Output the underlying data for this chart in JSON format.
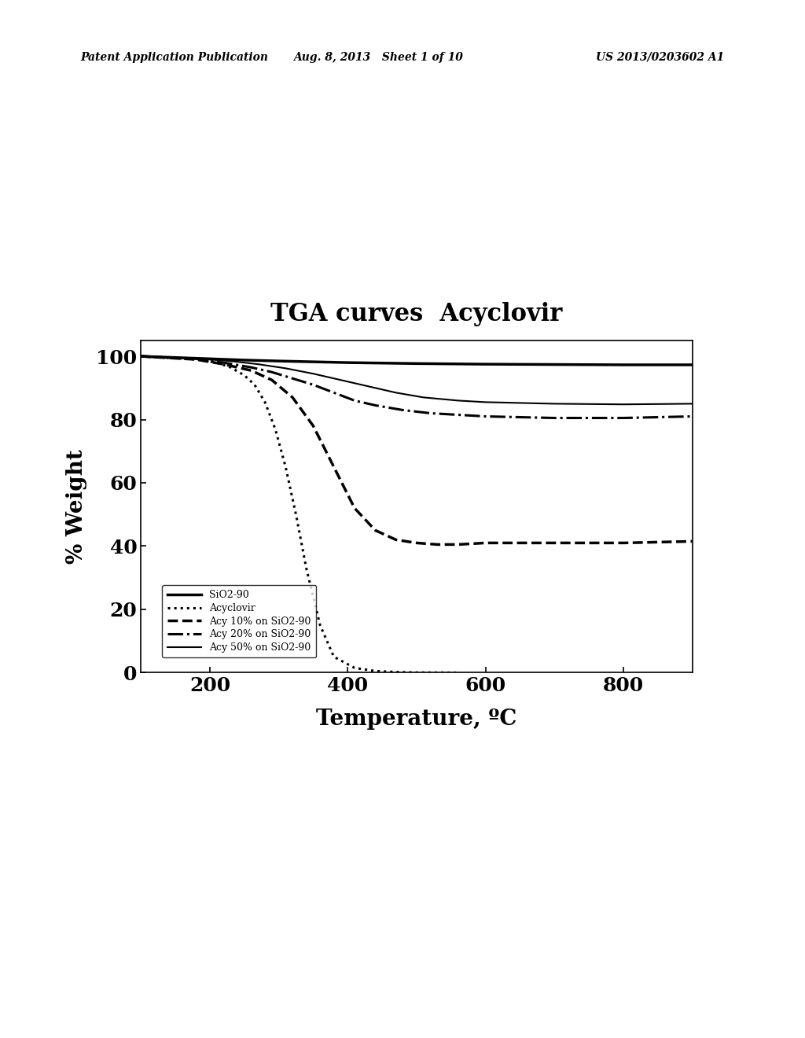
{
  "title": "TGA curves  Acyclovir",
  "xlabel": "Temperature, ºC",
  "ylabel": "% Weight",
  "xlim": [
    100,
    900
  ],
  "ylim": [
    0,
    105
  ],
  "xticks": [
    200,
    400,
    600,
    800
  ],
  "yticks": [
    0,
    20,
    40,
    60,
    80,
    100
  ],
  "background_color": "#ffffff",
  "header_left": "Patent Application Publication",
  "header_mid": "Aug. 8, 2013   Sheet 1 of 10",
  "header_right": "US 2013/0203602 A1",
  "legend_labels": [
    "SiO2-90",
    "Acyclovir",
    "Acy 10% on SiO2-90",
    "Acy 20% on SiO2-90",
    "Acy 50% on SiO2-90"
  ],
  "curves": {
    "SiO2-90": {
      "x": [
        100,
        150,
        200,
        250,
        300,
        400,
        500,
        600,
        700,
        800,
        900
      ],
      "y": [
        100,
        99.6,
        99.2,
        98.8,
        98.5,
        98.0,
        97.7,
        97.5,
        97.4,
        97.3,
        97.3
      ],
      "linestyle": "solid",
      "linewidth": 2.5
    },
    "Acyclovir": {
      "x": [
        100,
        180,
        210,
        230,
        250,
        265,
        280,
        295,
        310,
        325,
        340,
        360,
        380,
        410,
        440,
        470,
        500,
        530,
        560
      ],
      "y": [
        100,
        99.0,
        98.0,
        96.5,
        94.0,
        91.0,
        85.5,
        77.0,
        65.0,
        50.0,
        33.0,
        15.0,
        5.0,
        1.5,
        0.5,
        0.2,
        0.05,
        0.02,
        0.0
      ],
      "linestyle": "dotted",
      "linewidth": 2.2
    },
    "Acy10": {
      "x": [
        100,
        180,
        220,
        260,
        290,
        320,
        350,
        380,
        410,
        440,
        470,
        500,
        530,
        560,
        600,
        700,
        800,
        900
      ],
      "y": [
        100,
        99.0,
        97.5,
        95.5,
        92.5,
        87.0,
        78.0,
        65.0,
        52.0,
        45.0,
        42.0,
        41.0,
        40.5,
        40.5,
        41.0,
        41.0,
        41.0,
        41.5
      ],
      "linestyle": "dashed",
      "linewidth": 2.5
    },
    "Acy20": {
      "x": [
        100,
        180,
        220,
        260,
        290,
        320,
        350,
        380,
        410,
        440,
        480,
        520,
        560,
        600,
        700,
        800,
        900
      ],
      "y": [
        100,
        99.2,
        98.0,
        96.5,
        95.0,
        93.0,
        91.0,
        88.5,
        86.0,
        84.5,
        83.0,
        82.0,
        81.5,
        81.0,
        80.5,
        80.5,
        81.0
      ],
      "linestyle": "dashdot",
      "linewidth": 2.2
    },
    "Acy50": {
      "x": [
        100,
        180,
        230,
        270,
        310,
        350,
        390,
        430,
        470,
        510,
        560,
        600,
        700,
        800,
        900
      ],
      "y": [
        100,
        99.3,
        98.5,
        97.5,
        96.2,
        94.5,
        92.5,
        90.5,
        88.5,
        87.0,
        86.0,
        85.5,
        85.0,
        84.8,
        85.0
      ],
      "linestyle": "solid",
      "linewidth": 1.5
    }
  }
}
